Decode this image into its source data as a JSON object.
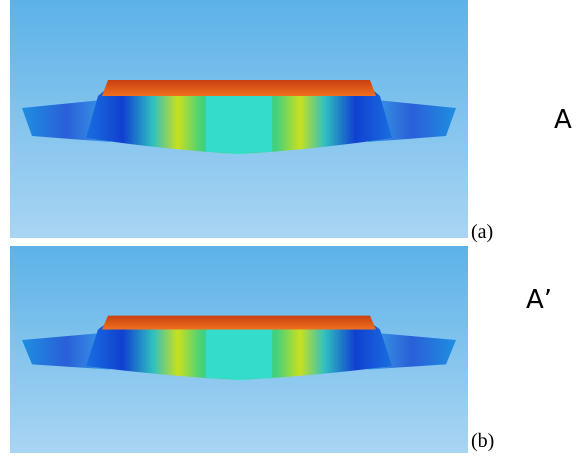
{
  "panels": [
    {
      "marker": "A",
      "caption": "(a)"
    },
    {
      "marker": "A’",
      "caption": "(b)"
    }
  ]
}
